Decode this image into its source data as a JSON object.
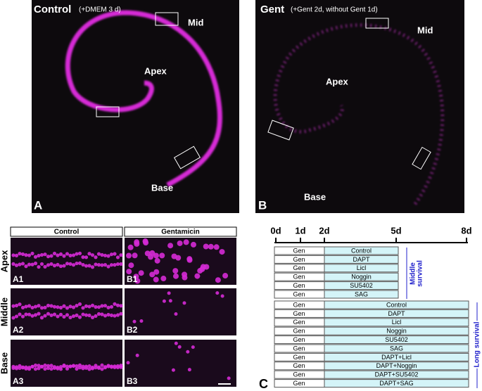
{
  "panel_a": {
    "title": "Control",
    "subtitle": "(+DMEM 3 d)",
    "mid": "Mid",
    "apex": "Apex",
    "base": "Base",
    "letter": "A"
  },
  "panel_b": {
    "title": "Gent",
    "subtitle": "(+Gent 2d, without Gent 1d)",
    "mid": "Mid",
    "apex": "Apex",
    "base": "Base",
    "letter": "B"
  },
  "grid": {
    "col_headers": [
      "Control",
      "Gentamicin"
    ],
    "row_headers": [
      "Apex",
      "Middle",
      "Base"
    ],
    "cells": [
      [
        "A1",
        "B1"
      ],
      [
        "A2",
        "B2"
      ],
      [
        "A3",
        "B3"
      ]
    ]
  },
  "timeline": {
    "days": [
      "0d",
      "1d",
      "2d",
      "5d",
      "8d"
    ],
    "middle_rows": [
      [
        "Gen",
        "Control"
      ],
      [
        "Gen",
        "DAPT"
      ],
      [
        "Gen",
        "Licl"
      ],
      [
        "Gen",
        "Noggin"
      ],
      [
        "Gen",
        "SU5402"
      ],
      [
        "Gen",
        "SAG"
      ]
    ],
    "middle_label": [
      "Middle",
      "survival"
    ],
    "long_rows": [
      [
        "Gen",
        "Control"
      ],
      [
        "Gen",
        "DAPT"
      ],
      [
        "Gen",
        "Licl"
      ],
      [
        "Gen",
        "Noggin"
      ],
      [
        "Gen",
        "SU5402"
      ],
      [
        "Gen",
        "SAG"
      ],
      [
        "Gen",
        "DAPT+Licl"
      ],
      [
        "Gen",
        "DAPT+Noggin"
      ],
      [
        "Gen",
        "DAPT+SU5402"
      ],
      [
        "Gen",
        "DAPT+SAG"
      ]
    ],
    "long_label": "Long survival",
    "letter": "C"
  }
}
